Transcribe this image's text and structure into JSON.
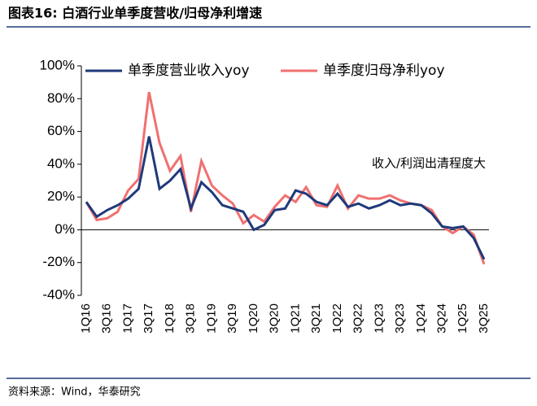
{
  "chart_data": {
    "type": "line",
    "title": "图表16:  白酒行业单季度营收/归母净利增速",
    "source": "资料来源：Wind，华泰研究",
    "annotation": "收入/利润出清程度大",
    "annotation_color": "#e00000",
    "legend": "top",
    "categories": [
      "1Q16",
      null,
      "3Q16",
      null,
      "1Q17",
      null,
      "3Q17",
      null,
      "1Q18",
      null,
      "3Q18",
      null,
      "1Q19",
      null,
      "3Q19",
      null,
      "1Q20",
      null,
      "3Q20",
      null,
      "1Q21",
      null,
      "3Q21",
      null,
      "1Q22",
      null,
      "3Q22",
      null,
      "1Q23",
      null,
      "3Q23",
      null,
      "1Q24",
      null,
      "3Q24",
      null,
      "1Q25",
      null,
      "3Q25"
    ],
    "series": [
      {
        "name": "单季度营业收入yoy",
        "color": "#1f3a7a",
        "values": [
          17,
          8,
          12,
          15,
          19,
          25,
          57,
          25,
          30,
          37,
          13,
          29,
          23,
          15,
          13,
          11,
          0,
          3,
          12,
          13,
          24,
          22,
          17,
          15,
          22,
          14,
          16,
          13,
          15,
          18,
          15,
          16,
          15,
          10,
          2,
          1,
          2,
          -5,
          -18
        ]
      },
      {
        "name": "单季度归母净利yoy",
        "color": "#f07070",
        "values": [
          17,
          6,
          7,
          11,
          24,
          31,
          84,
          53,
          36,
          45,
          11,
          42,
          27,
          21,
          16,
          4,
          9,
          5,
          14,
          21,
          17,
          26,
          15,
          14,
          27,
          13,
          21,
          19,
          19,
          21,
          18,
          16,
          15,
          12,
          2,
          -2,
          2,
          -3,
          -21
        ]
      }
    ],
    "ylim": [
      -40,
      100
    ],
    "yticks": [
      {
        "value": -40,
        "label": "-40%"
      },
      {
        "value": -20,
        "label": "-20%"
      },
      {
        "value": 0,
        "label": "0%"
      },
      {
        "value": 20,
        "label": "20%"
      },
      {
        "value": 40,
        "label": "40%"
      },
      {
        "value": 60,
        "label": "60%"
      },
      {
        "value": 80,
        "label": "80%"
      },
      {
        "value": 100,
        "label": "100%"
      }
    ]
  }
}
